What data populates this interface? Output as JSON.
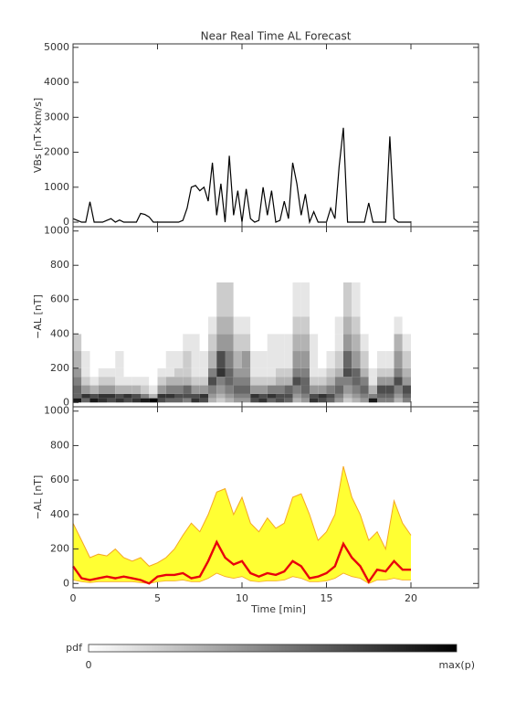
{
  "chart_data": [
    {
      "type": "line",
      "title": "Near Real Time AL Forecast",
      "ylabel": "VBs [nT×km/s]",
      "color": "#000000",
      "x": [
        0,
        0.25,
        0.5,
        0.75,
        1,
        1.25,
        1.5,
        1.75,
        2,
        2.25,
        2.5,
        2.75,
        3,
        3.25,
        3.5,
        3.75,
        4,
        4.25,
        4.5,
        4.75,
        5,
        5.25,
        5.5,
        5.75,
        6,
        6.25,
        6.5,
        6.75,
        7,
        7.25,
        7.5,
        7.75,
        8,
        8.25,
        8.5,
        8.75,
        9,
        9.25,
        9.5,
        9.75,
        10,
        10.25,
        10.5,
        10.75,
        11,
        11.25,
        11.5,
        11.75,
        12,
        12.25,
        12.5,
        12.75,
        13,
        13.25,
        13.5,
        13.75,
        14,
        14.25,
        14.5,
        14.75,
        15,
        15.25,
        15.5,
        15.75,
        16,
        16.25,
        16.5,
        16.75,
        17,
        17.25,
        17.5,
        17.75,
        18,
        18.25,
        18.5,
        18.75,
        19,
        19.25,
        19.5,
        19.75,
        20
      ],
      "values": [
        100,
        50,
        0,
        0,
        580,
        0,
        0,
        0,
        50,
        100,
        0,
        60,
        0,
        0,
        0,
        0,
        250,
        220,
        150,
        0,
        0,
        0,
        0,
        0,
        0,
        0,
        50,
        400,
        1000,
        1050,
        900,
        1000,
        600,
        1700,
        200,
        1100,
        0,
        1900,
        200,
        900,
        0,
        950,
        100,
        0,
        50,
        1000,
        200,
        900,
        0,
        50,
        600,
        100,
        1700,
        1100,
        200,
        800,
        0,
        300,
        0,
        0,
        0,
        400,
        100,
        1600,
        2700,
        0,
        0,
        0,
        0,
        0,
        550,
        0,
        0,
        0,
        0,
        2450,
        100,
        0,
        0,
        0,
        0
      ],
      "xlim": [
        0,
        24
      ],
      "xticks": [
        0,
        5,
        10,
        15,
        20
      ],
      "show_xtick_labels": false,
      "ylim": [
        -130,
        5100
      ],
      "yticks": [
        0,
        1000,
        2000,
        3000,
        4000,
        5000
      ]
    },
    {
      "type": "heatmap",
      "ylabel": "−AL [nT]",
      "x_edges": [
        0,
        0.5,
        1,
        1.5,
        2,
        2.5,
        3,
        3.5,
        4,
        4.5,
        5,
        5.5,
        6,
        6.5,
        7,
        7.5,
        8,
        8.5,
        9,
        9.5,
        10,
        10.5,
        11,
        11.5,
        12,
        12.5,
        13,
        13.5,
        14,
        14.5,
        15,
        15.5,
        16,
        16.5,
        17,
        17.5,
        18,
        18.5,
        19,
        19.5,
        20
      ],
      "y_edges": [
        0,
        25,
        50,
        100,
        150,
        200,
        300,
        400,
        500,
        700
      ],
      "z": [
        [
          0.9,
          0.6,
          0.9,
          0.8,
          0.7,
          0.8,
          0.7,
          0.8,
          0.9,
          1.0,
          0.7,
          0.6,
          0.6,
          0.5,
          0.8,
          0.7,
          0.3,
          0.2,
          0.3,
          0.4,
          0.4,
          0.7,
          0.8,
          0.6,
          0.7,
          0.6,
          0.3,
          0.4,
          0.8,
          0.7,
          0.6,
          0.4,
          0.2,
          0.3,
          0.4,
          0.9,
          0.5,
          0.5,
          0.3,
          0.5
        ],
        [
          0.6,
          0.8,
          0.7,
          0.8,
          0.8,
          0.7,
          0.8,
          0.7,
          0.5,
          0.3,
          0.8,
          0.8,
          0.7,
          0.7,
          0.7,
          0.8,
          0.4,
          0.3,
          0.4,
          0.5,
          0.5,
          0.8,
          0.7,
          0.8,
          0.7,
          0.7,
          0.4,
          0.5,
          0.7,
          0.8,
          0.7,
          0.5,
          0.3,
          0.4,
          0.5,
          0.5,
          0.6,
          0.6,
          0.4,
          0.6
        ],
        [
          0.6,
          0.4,
          0.3,
          0.4,
          0.4,
          0.3,
          0.3,
          0.3,
          0.2,
          0.1,
          0.4,
          0.5,
          0.5,
          0.6,
          0.4,
          0.4,
          0.5,
          0.4,
          0.5,
          0.6,
          0.6,
          0.4,
          0.4,
          0.5,
          0.5,
          0.6,
          0.5,
          0.6,
          0.4,
          0.4,
          0.5,
          0.6,
          0.4,
          0.5,
          0.6,
          0.3,
          0.7,
          0.7,
          0.5,
          0.7
        ],
        [
          0.5,
          0.2,
          0.1,
          0.2,
          0.2,
          0.1,
          0.1,
          0.1,
          0.1,
          0.0,
          0.2,
          0.3,
          0.3,
          0.3,
          0.2,
          0.2,
          0.7,
          0.5,
          0.6,
          0.5,
          0.5,
          0.2,
          0.2,
          0.2,
          0.3,
          0.3,
          0.7,
          0.6,
          0.2,
          0.2,
          0.3,
          0.5,
          0.5,
          0.6,
          0.5,
          0.1,
          0.4,
          0.4,
          0.7,
          0.4
        ],
        [
          0.4,
          0.1,
          0.0,
          0.1,
          0.1,
          0.1,
          0.0,
          0.0,
          0.0,
          0.0,
          0.1,
          0.1,
          0.2,
          0.2,
          0.1,
          0.1,
          0.5,
          0.8,
          0.6,
          0.4,
          0.4,
          0.1,
          0.1,
          0.1,
          0.2,
          0.2,
          0.5,
          0.5,
          0.1,
          0.1,
          0.2,
          0.3,
          0.7,
          0.6,
          0.3,
          0.1,
          0.2,
          0.2,
          0.5,
          0.3
        ],
        [
          0.3,
          0.1,
          0.0,
          0.0,
          0.0,
          0.1,
          0.0,
          0.0,
          0.0,
          0.0,
          0.0,
          0.1,
          0.1,
          0.2,
          0.1,
          0.1,
          0.3,
          0.7,
          0.5,
          0.3,
          0.4,
          0.1,
          0.1,
          0.1,
          0.1,
          0.1,
          0.4,
          0.4,
          0.1,
          0.0,
          0.1,
          0.2,
          0.6,
          0.4,
          0.2,
          0.0,
          0.1,
          0.1,
          0.4,
          0.2
        ],
        [
          0.2,
          0.0,
          0.0,
          0.0,
          0.0,
          0.0,
          0.0,
          0.0,
          0.0,
          0.0,
          0.0,
          0.0,
          0.0,
          0.1,
          0.1,
          0.0,
          0.2,
          0.4,
          0.4,
          0.2,
          0.2,
          0.0,
          0.0,
          0.1,
          0.1,
          0.1,
          0.3,
          0.3,
          0.1,
          0.0,
          0.0,
          0.1,
          0.4,
          0.3,
          0.1,
          0.0,
          0.0,
          0.0,
          0.3,
          0.1
        ],
        [
          0,
          0,
          0,
          0,
          0,
          0,
          0,
          0,
          0,
          0,
          0,
          0,
          0,
          0,
          0,
          0,
          0.1,
          0.3,
          0.3,
          0.1,
          0.1,
          0,
          0,
          0,
          0,
          0,
          0.2,
          0.2,
          0,
          0,
          0,
          0.1,
          0.3,
          0.2,
          0,
          0,
          0,
          0,
          0.1,
          0
        ],
        [
          0,
          0,
          0,
          0,
          0,
          0,
          0,
          0,
          0,
          0,
          0,
          0,
          0,
          0,
          0,
          0,
          0,
          0.2,
          0.2,
          0,
          0,
          0,
          0,
          0,
          0,
          0,
          0.1,
          0.1,
          0,
          0,
          0,
          0,
          0.2,
          0.1,
          0,
          0,
          0,
          0,
          0,
          0
        ]
      ],
      "colorbar_label": "pdf",
      "colorbar_min_label": "0",
      "colorbar_max_label": "max(p)",
      "xlim": [
        0,
        24
      ],
      "xticks": [
        0,
        5,
        10,
        15,
        20
      ],
      "show_xtick_labels": false,
      "ylim": [
        -25,
        1025
      ],
      "yticks": [
        0,
        200,
        400,
        600,
        800,
        1000
      ]
    },
    {
      "type": "band",
      "ylabel": "−AL [nT]",
      "xlabel": "Time [min]",
      "band_color": "#ffff33",
      "edge_color": "#f5a623",
      "line_color": "#e8000b",
      "x": [
        0,
        0.5,
        1,
        1.5,
        2,
        2.5,
        3,
        3.5,
        4,
        4.5,
        5,
        5.5,
        6,
        6.5,
        7,
        7.5,
        8,
        8.5,
        9,
        9.5,
        10,
        10.5,
        11,
        11.5,
        12,
        12.5,
        13,
        13.5,
        14,
        14.5,
        15,
        15.5,
        16,
        16.5,
        17,
        17.5,
        18,
        18.5,
        19,
        19.5,
        20
      ],
      "upper": [
        350,
        250,
        150,
        170,
        160,
        200,
        150,
        130,
        150,
        100,
        120,
        150,
        200,
        280,
        350,
        300,
        400,
        530,
        550,
        400,
        500,
        350,
        300,
        380,
        320,
        350,
        500,
        520,
        400,
        250,
        300,
        400,
        680,
        500,
        400,
        250,
        300,
        200,
        480,
        350,
        280
      ],
      "lower": [
        20,
        10,
        5,
        10,
        10,
        10,
        10,
        10,
        5,
        0,
        10,
        15,
        15,
        20,
        10,
        10,
        30,
        60,
        40,
        30,
        40,
        15,
        10,
        15,
        15,
        20,
        40,
        30,
        10,
        10,
        15,
        30,
        60,
        40,
        30,
        0,
        20,
        20,
        30,
        20,
        20
      ],
      "median": [
        100,
        30,
        20,
        30,
        40,
        30,
        40,
        30,
        20,
        0,
        40,
        50,
        50,
        60,
        30,
        40,
        130,
        240,
        150,
        110,
        130,
        60,
        40,
        60,
        50,
        70,
        130,
        100,
        30,
        40,
        60,
        100,
        230,
        150,
        100,
        10,
        80,
        70,
        130,
        80,
        80
      ],
      "xlim": [
        0,
        24
      ],
      "xticks": [
        0,
        5,
        10,
        15,
        20
      ],
      "show_xtick_labels": true,
      "ylim": [
        -25,
        1025
      ],
      "yticks": [
        0,
        200,
        400,
        600,
        800,
        1000
      ]
    }
  ]
}
